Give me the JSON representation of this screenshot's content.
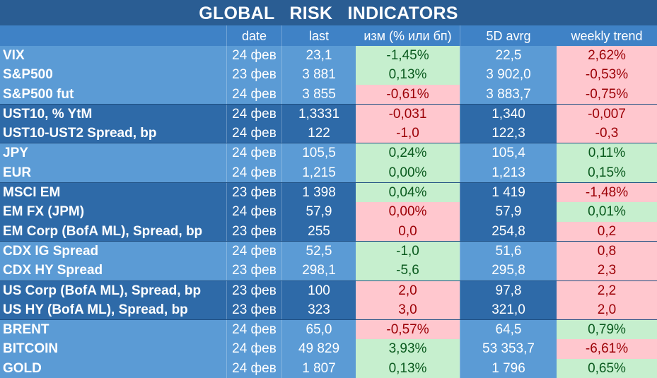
{
  "title": "GLOBAL   RISK   INDICATORS",
  "headers": [
    "",
    "date",
    "last",
    "изм (% или бп)",
    "5D avrg",
    "weekly trend"
  ],
  "rows": [
    {
      "name": "VIX",
      "date": "24 фев",
      "last": "23,1",
      "chg": "-1,45%",
      "chg_state": "pos",
      "avg": "22,5",
      "trend": "2,62%",
      "trend_state": "neg",
      "shade": "lt"
    },
    {
      "name": "S&P500",
      "date": "23 фев",
      "last": "3 881",
      "chg": "0,13%",
      "chg_state": "pos",
      "avg": "3 902,0",
      "trend": "-0,53%",
      "trend_state": "neg",
      "shade": "lt"
    },
    {
      "name": "S&P500 fut",
      "date": "24 фев",
      "last": "3 855",
      "chg": "-0,61%",
      "chg_state": "neg",
      "avg": "3 883,7",
      "trend": "-0,75%",
      "trend_state": "neg",
      "shade": "lt"
    },
    {
      "name": "UST10, % YtM",
      "date": "24 фев",
      "last": "1,3331",
      "chg": "-0,031",
      "chg_state": "neg",
      "avg": "1,340",
      "trend": "-0,007",
      "trend_state": "neg",
      "shade": "dk"
    },
    {
      "name": "UST10-UST2 Spread, bp",
      "date": "24 фев",
      "last": "122",
      "chg": "-1,0",
      "chg_state": "neg",
      "avg": "122,3",
      "trend": "-0,3",
      "trend_state": "neg",
      "shade": "dk"
    },
    {
      "name": "JPY",
      "date": "24 фев",
      "last": "105,5",
      "chg": "0,24%",
      "chg_state": "pos",
      "avg": "105,4",
      "trend": "0,11%",
      "trend_state": "pos",
      "shade": "lt"
    },
    {
      "name": "EUR",
      "date": "24 фев",
      "last": "1,215",
      "chg": "0,00%",
      "chg_state": "pos",
      "avg": "1,213",
      "trend": "0,15%",
      "trend_state": "pos",
      "shade": "lt"
    },
    {
      "name": "MSCI EM",
      "date": "23 фев",
      "last": "1 398",
      "chg": "0,04%",
      "chg_state": "pos",
      "avg": "1 419",
      "trend": "-1,48%",
      "trend_state": "neg",
      "shade": "dk"
    },
    {
      "name": "EM FX (JPM)",
      "date": "24 фев",
      "last": "57,9",
      "chg": "0,00%",
      "chg_state": "neg",
      "avg": "57,9",
      "trend": "0,01%",
      "trend_state": "pos",
      "shade": "dk"
    },
    {
      "name": "EM Corp (BofA ML), Spread, bp",
      "date": "23 фев",
      "last": "255",
      "chg": "0,0",
      "chg_state": "neg",
      "avg": "254,8",
      "trend": "0,2",
      "trend_state": "neg",
      "shade": "dk"
    },
    {
      "name": "CDX IG Spread",
      "date": "24 фев",
      "last": "52,5",
      "chg": "-1,0",
      "chg_state": "pos",
      "avg": "51,6",
      "trend": "0,8",
      "trend_state": "neg",
      "shade": "lt"
    },
    {
      "name": "CDX HY Spread",
      "date": "23 фев",
      "last": "298,1",
      "chg": "-5,6",
      "chg_state": "pos",
      "avg": "295,8",
      "trend": "2,3",
      "trend_state": "neg",
      "shade": "lt"
    },
    {
      "name": "US Corp (BofA ML), Spread, bp",
      "date": "23 фев",
      "last": "100",
      "chg": "2,0",
      "chg_state": "neg",
      "avg": "97,8",
      "trend": "2,2",
      "trend_state": "neg",
      "shade": "dk"
    },
    {
      "name": "US HY (BofA ML), Spread, bp",
      "date": "23 фев",
      "last": "323",
      "chg": "3,0",
      "chg_state": "neg",
      "avg": "321,0",
      "trend": "2,0",
      "trend_state": "neg",
      "shade": "dk"
    },
    {
      "name": "BRENT",
      "date": "24 фев",
      "last": "65,0",
      "chg": "-0,57%",
      "chg_state": "neg",
      "avg": "64,5",
      "trend": "0,79%",
      "trend_state": "pos",
      "shade": "lt"
    },
    {
      "name": "BITCOIN",
      "date": "24 фев",
      "last": "49 829",
      "chg": "3,93%",
      "chg_state": "pos",
      "avg": "53 353,7",
      "trend": "-6,61%",
      "trend_state": "neg",
      "shade": "lt"
    },
    {
      "name": "GOLD",
      "date": "24 фев",
      "last": "1 807",
      "chg": "0,13%",
      "chg_state": "pos",
      "avg": "1 796",
      "trend": "0,65%",
      "trend_state": "pos",
      "shade": "lt"
    }
  ]
}
